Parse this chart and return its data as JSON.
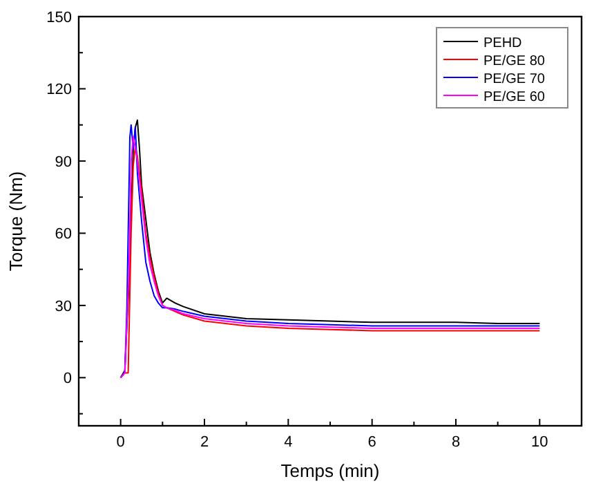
{
  "chart_data": {
    "type": "line",
    "xlabel": "Temps (min)",
    "ylabel": "Torque (Nm)",
    "xlim": [
      -1,
      11
    ],
    "ylim": [
      -20,
      150
    ],
    "xticks": [
      {
        "value": -1,
        "label": null
      },
      0,
      {
        "value": 1,
        "label": null
      },
      2,
      {
        "value": 3,
        "label": null
      },
      4,
      {
        "value": 5,
        "label": null
      },
      6,
      {
        "value": 7,
        "label": null
      },
      8,
      {
        "value": 9,
        "label": null
      },
      10
    ],
    "yticks": [
      {
        "value": -15,
        "label": null
      },
      0,
      {
        "value": 15,
        "label": null
      },
      30,
      {
        "value": 45,
        "label": null
      },
      60,
      {
        "value": 75,
        "label": null
      },
      90,
      {
        "value": 105,
        "label": null
      },
      120,
      {
        "value": 135,
        "label": null
      },
      150
    ],
    "grid": false,
    "legend": "top right",
    "line_style": "solid",
    "marker": "none",
    "series": [
      {
        "name": "PEHD",
        "color": "#000000",
        "x": [
          0,
          0.1,
          0.2,
          0.3,
          0.35,
          0.4,
          0.45,
          0.5,
          0.6,
          0.7,
          0.8,
          0.9,
          1.0,
          1.1,
          1.3,
          1.5,
          2,
          2.5,
          3,
          4,
          5,
          6,
          7,
          8,
          9,
          10
        ],
        "values": [
          0,
          3,
          40,
          95,
          104,
          107,
          95,
          80,
          66,
          52,
          43,
          36,
          31,
          33,
          31,
          29.5,
          26.5,
          25.5,
          24.5,
          24,
          23.5,
          23,
          23,
          23,
          22.5,
          22.5
        ]
      },
      {
        "name": "PE/GE 80",
        "color": "#ff0000",
        "x": [
          0,
          0.1,
          0.18,
          0.25,
          0.3,
          0.35,
          0.4,
          0.5,
          0.6,
          0.7,
          0.8,
          0.9,
          1.0,
          1.1,
          1.3,
          1.5,
          2,
          2.5,
          3,
          4,
          5,
          6,
          7,
          8,
          9,
          10
        ],
        "values": [
          0,
          2,
          2,
          60,
          88,
          96,
          92,
          78,
          60,
          50,
          42,
          35,
          30,
          29,
          27.5,
          26,
          23.5,
          22.5,
          21.5,
          20.5,
          20,
          19.5,
          19.5,
          19.5,
          19.5,
          19.5
        ]
      },
      {
        "name": "PE/GE 70",
        "color": "#0000ff",
        "x": [
          0,
          0.1,
          0.15,
          0.22,
          0.25,
          0.3,
          0.35,
          0.4,
          0.5,
          0.6,
          0.7,
          0.8,
          0.9,
          1.0,
          1.1,
          1.3,
          1.5,
          2,
          2.5,
          3,
          4,
          5,
          6,
          7,
          8,
          9,
          10
        ],
        "values": [
          0,
          2,
          30,
          100,
          105,
          95,
          104,
          85,
          65,
          48,
          40,
          34,
          31,
          29,
          29,
          28.5,
          27.5,
          25.5,
          24.5,
          23.5,
          22.5,
          22,
          21.5,
          21.5,
          21.5,
          21.5,
          21.5
        ]
      },
      {
        "name": "PE/GE 60",
        "color": "#ff00ff",
        "x": [
          0,
          0.1,
          0.2,
          0.25,
          0.3,
          0.35,
          0.4,
          0.5,
          0.6,
          0.7,
          0.8,
          0.9,
          1.0,
          1.1,
          1.3,
          1.5,
          2,
          2.5,
          3,
          4,
          5,
          6,
          7,
          8,
          9,
          10
        ],
        "values": [
          0,
          2,
          45,
          90,
          100,
          96,
          90,
          74,
          58,
          47,
          40,
          34,
          30,
          29,
          28,
          26.5,
          24.5,
          23.5,
          22.5,
          21.5,
          21,
          20.5,
          20.5,
          20.5,
          20.5,
          20.5
        ]
      }
    ]
  }
}
